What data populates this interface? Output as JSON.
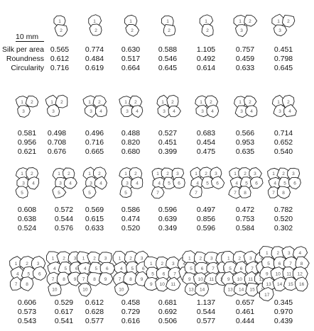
{
  "figure": {
    "scale_label": "10 mm",
    "row_labels": [
      "Silk per area",
      "Roundness",
      "Circularity"
    ],
    "rows": [
      {
        "clusters": [
          {
            "silk": "0.565",
            "roundness": "0.612",
            "circularity": "0.716",
            "cell_labels": [
              "1",
              "2"
            ]
          },
          {
            "silk": "0.774",
            "roundness": "0.484",
            "circularity": "0.619",
            "cell_labels": [
              "1",
              "2"
            ]
          },
          {
            "silk": "0.630",
            "roundness": "0.517",
            "circularity": "0.664",
            "cell_labels": [
              "1",
              "2"
            ]
          },
          {
            "silk": "0.588",
            "roundness": "0.546",
            "circularity": "0.645",
            "cell_labels": [
              "1",
              "2"
            ]
          },
          {
            "silk": "1.105",
            "roundness": "0.492",
            "circularity": "0.614",
            "cell_labels": [
              "1",
              "2"
            ]
          },
          {
            "silk": "0.757",
            "roundness": "0.459",
            "circularity": "0.633",
            "cell_labels": [
              "1",
              "2",
              "3"
            ]
          },
          {
            "silk": "0.451",
            "roundness": "0.798",
            "circularity": "0.645",
            "cell_labels": [
              "1",
              "2",
              "3"
            ]
          }
        ]
      },
      {
        "clusters": [
          {
            "silk": "0.581",
            "roundness": "0.956",
            "circularity": "0.621",
            "cell_labels": [
              "1",
              "2",
              "3"
            ]
          },
          {
            "silk": "0.498",
            "roundness": "0.708",
            "circularity": "0.676",
            "cell_labels": [
              "1",
              "2",
              "3"
            ]
          },
          {
            "silk": "0.496",
            "roundness": "0.716",
            "circularity": "0.665",
            "cell_labels": [
              "1",
              "2",
              "3",
              "4"
            ]
          },
          {
            "silk": "0.488",
            "roundness": "0.820",
            "circularity": "0.680",
            "cell_labels": [
              "1",
              "2",
              "3",
              "4"
            ]
          },
          {
            "silk": "0.527",
            "roundness": "0.451",
            "circularity": "0.399",
            "cell_labels": [
              "1",
              "2",
              "3",
              "4"
            ]
          },
          {
            "silk": "0.683",
            "roundness": "0.454",
            "circularity": "0.475",
            "cell_labels": [
              "1",
              "2",
              "3",
              "4"
            ]
          },
          {
            "silk": "0.566",
            "roundness": "0.953",
            "circularity": "0.635",
            "cell_labels": [
              "1",
              "2",
              "3",
              "4"
            ]
          },
          {
            "silk": "0.714",
            "roundness": "0.652",
            "circularity": "0.540",
            "cell_labels": [
              "1",
              "2",
              "3",
              "4"
            ]
          }
        ]
      },
      {
        "clusters": [
          {
            "silk": "0.608",
            "roundness": "0.638",
            "circularity": "0.524",
            "cell_labels": [
              "1",
              "2",
              "3",
              "4",
              "5"
            ]
          },
          {
            "silk": "0.572",
            "roundness": "0.544",
            "circularity": "0.576",
            "cell_labels": [
              "1",
              "2",
              "3",
              "4",
              "5"
            ]
          },
          {
            "silk": "0.569",
            "roundness": "0.615",
            "circularity": "0.633",
            "cell_labels": [
              "1",
              "2",
              "3",
              "4",
              "5"
            ]
          },
          {
            "silk": "0.586",
            "roundness": "0.474",
            "circularity": "0.520",
            "cell_labels": [
              "1",
              "2",
              "3",
              "4",
              "5"
            ]
          },
          {
            "silk": "0.596",
            "roundness": "0.639",
            "circularity": "0.349",
            "cell_labels": [
              "1",
              "2",
              "3",
              "4",
              "5",
              "6",
              "7"
            ]
          },
          {
            "silk": "0.497",
            "roundness": "0.856",
            "circularity": "0.596",
            "cell_labels": [
              "1",
              "2",
              "3",
              "4",
              "5",
              "6",
              "7"
            ]
          },
          {
            "silk": "0.472",
            "roundness": "0.753",
            "circularity": "0.584",
            "cell_labels": [
              "1",
              "2",
              "3",
              "4",
              "5",
              "6",
              "7",
              "8"
            ]
          },
          {
            "silk": "0.782",
            "roundness": "0.520",
            "circularity": "0.302",
            "cell_labels": [
              "1",
              "2",
              "3",
              "4",
              "5",
              "6",
              "7",
              "8"
            ]
          }
        ]
      },
      {
        "clusters": [
          {
            "silk": "0.606",
            "roundness": "0.573",
            "circularity": "0.543",
            "cell_labels": [
              "1",
              "2",
              "3",
              "4",
              "5",
              "6",
              "7",
              "8"
            ]
          },
          {
            "silk": "0.529",
            "roundness": "0.617",
            "circularity": "0.541",
            "cell_labels": [
              "1",
              "2",
              "3",
              "4",
              "5",
              "6",
              "7",
              "8",
              "9",
              "10"
            ]
          },
          {
            "silk": "0.612",
            "roundness": "0.628",
            "circularity": "0.577",
            "cell_labels": [
              "1",
              "2",
              "3",
              "4",
              "5",
              "6",
              "7",
              "8",
              "9",
              "10"
            ]
          },
          {
            "silk": "0.458",
            "roundness": "0.729",
            "circularity": "0.616",
            "cell_labels": [
              "1",
              "2",
              "3",
              "4",
              "5",
              "6",
              "7",
              "8",
              "9",
              "10"
            ]
          },
          {
            "silk": "0.681",
            "roundness": "0.692",
            "circularity": "0.506",
            "cell_labels": [
              "1",
              "2",
              "3",
              "4",
              "5",
              "6",
              "7",
              "8",
              "9",
              "10",
              "11"
            ]
          },
          {
            "silk": "1.137",
            "roundness": "0.544",
            "circularity": "0.577",
            "cell_labels": [
              "1",
              "2",
              "3",
              "4",
              "5",
              "6",
              "7",
              "8",
              "9",
              "10",
              "11",
              "12",
              "13",
              "14"
            ]
          },
          {
            "silk": "0.657",
            "roundness": "0.461",
            "circularity": "0.444",
            "cell_labels": [
              "1",
              "2",
              "3",
              "4",
              "5",
              "6",
              "7",
              "8",
              "9",
              "10",
              "11",
              "12",
              "13",
              "14",
              "15",
              "16"
            ]
          },
          {
            "silk": "0.345",
            "roundness": "0.970",
            "circularity": "0.439",
            "cell_labels": [
              "1",
              "2",
              "3",
              "4",
              "5",
              "6",
              "7",
              "8",
              "9",
              "10",
              "11",
              "12",
              "13",
              "14",
              "15",
              "16",
              "17"
            ]
          }
        ]
      }
    ]
  }
}
